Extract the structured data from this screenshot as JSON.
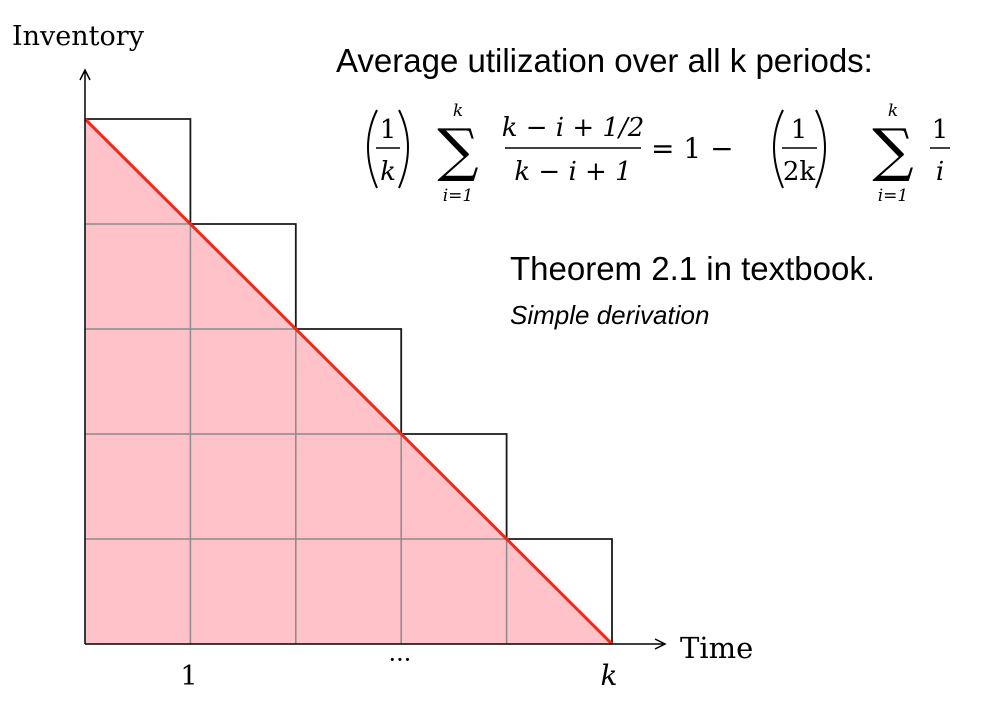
{
  "axes": {
    "y_label": "Inventory",
    "x_label": "Time",
    "x_ticks": [
      "1",
      "···",
      "k"
    ]
  },
  "text": {
    "heading": "Average utilization over all k periods:",
    "theorem": "Theorem 2.1 in textbook.",
    "subnote": "Simple derivation"
  },
  "formula": {
    "lhs_coeff_num": "1",
    "lhs_coeff_den": "k",
    "lhs_sum_upper": "k",
    "lhs_sum_lower": "i=1",
    "lhs_term_num": "k − i + 1/2",
    "lhs_term_den": "k − i + 1",
    "equals": "= 1 −",
    "rhs_coeff_num": "1",
    "rhs_coeff_den": "2k",
    "rhs_sum_upper": "k",
    "rhs_sum_lower": "i=1",
    "rhs_term_num": "1",
    "rhs_term_den": "i"
  },
  "diagram": {
    "periods": 5,
    "colors": {
      "fill": "#ffc2c8",
      "line": "#ee2a1c",
      "grid": "#8a8a8a",
      "outline": "#1a1a1a"
    }
  }
}
